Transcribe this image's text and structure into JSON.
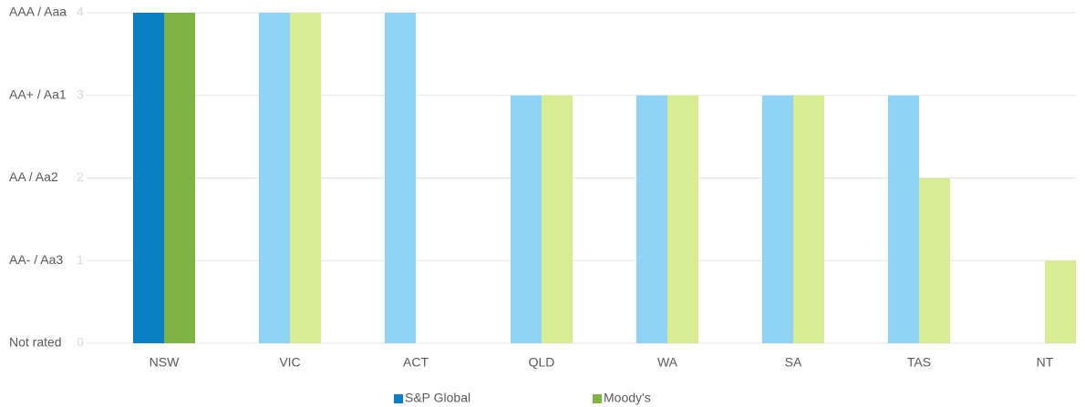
{
  "chart_data": {
    "type": "bar",
    "categories": [
      "NSW",
      "VIC",
      "ACT",
      "QLD",
      "WA",
      "SA",
      "TAS",
      "NT"
    ],
    "series": [
      {
        "name": "S&P Global",
        "color": "#0a7fc1",
        "colors": [
          "#0a7fc1",
          "#8fd3f5",
          "#8fd3f5",
          "#8fd3f5",
          "#8fd3f5",
          "#8fd3f5",
          "#8fd3f5",
          "#8fd3f5"
        ],
        "values": [
          4,
          4,
          4,
          3,
          3,
          3,
          3,
          0
        ]
      },
      {
        "name": "Moody's",
        "color": "#7cb342",
        "colors": [
          "#7cb342",
          "#d8ec93",
          "#d8ec93",
          "#d8ec93",
          "#d8ec93",
          "#d8ec93",
          "#d8ec93",
          "#d8ec93"
        ],
        "values": [
          4,
          4,
          0,
          3,
          3,
          3,
          2,
          1
        ]
      }
    ],
    "ylim": [
      0,
      4
    ],
    "yticks": [
      {
        "value": 0,
        "label": "Not rated"
      },
      {
        "value": 1,
        "label": "AA- / Aa3"
      },
      {
        "value": 2,
        "label": "AA / Aa2"
      },
      {
        "value": 3,
        "label": "AA+ / Aa1"
      },
      {
        "value": 4,
        "label": "AAA / Aaa"
      }
    ],
    "grid": true,
    "legend": "bottom"
  }
}
